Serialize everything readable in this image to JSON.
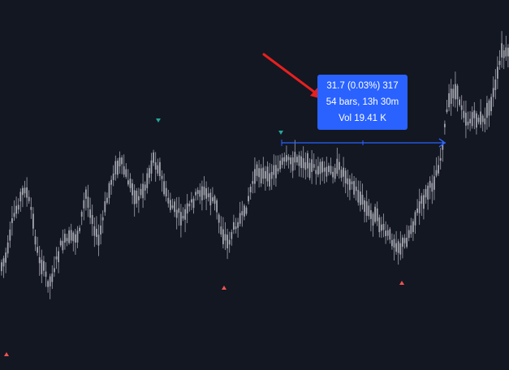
{
  "colors": {
    "background": "#131722",
    "candle": "#a3a6ae",
    "measure": "#2962ff",
    "marker_up": "#ef5350",
    "marker_down": "#26a69a",
    "annotation_arrow": "#e8201f"
  },
  "measure_tooltip": {
    "line1": "31.7 (0.03%) 317",
    "line2": "54 bars, 13h 30m",
    "line3": "Vol 19.41 K"
  },
  "icons": {
    "up_markers": "triangle-up-icon",
    "down_markers": "triangle-down-icon",
    "annotation": "red-arrow-icon"
  }
}
